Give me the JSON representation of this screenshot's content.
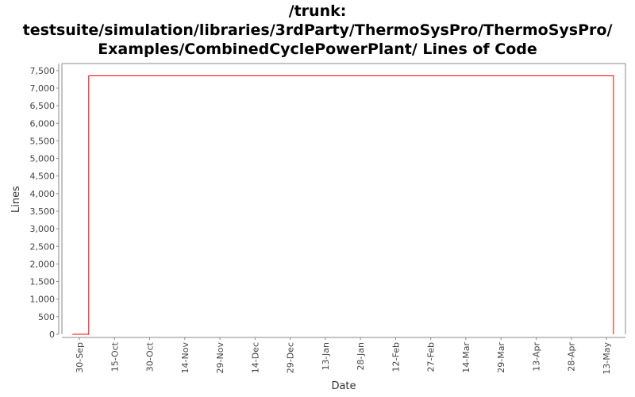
{
  "chart_data": {
    "type": "line",
    "title_lines": [
      "/trunk:",
      "testsuite/simulation/libraries/3rdParty/ThermoSysPro/ThermoSysPro/",
      "Examples/CombinedCyclePowerPlant/ Lines of Code"
    ],
    "xlabel": "Date",
    "ylabel": "Lines",
    "ylim": [
      0,
      7700
    ],
    "yticks": [
      0,
      500,
      1000,
      1500,
      2000,
      2500,
      3000,
      3500,
      4000,
      4500,
      5000,
      5500,
      6000,
      6500,
      7000,
      7500
    ],
    "ytick_labels": [
      "0",
      "500",
      "1,000",
      "1,500",
      "2,000",
      "2,500",
      "3,000",
      "3,500",
      "4,000",
      "4,500",
      "5,000",
      "5,500",
      "6,000",
      "6,500",
      "7,000",
      "7,500"
    ],
    "xtick_labels": [
      "30-Sep",
      "15-Oct",
      "30-Oct",
      "14-Nov",
      "29-Nov",
      "14-Dec",
      "29-Dec",
      "13-Jan",
      "28-Jan",
      "12-Feb",
      "27-Feb",
      "14-Mar",
      "29-Mar",
      "13-Apr",
      "28-Apr",
      "13-May"
    ],
    "grid": false,
    "series": [
      {
        "color": "#ff0000",
        "points": [
          {
            "x": "27-Sep",
            "y": 0
          },
          {
            "x": "4-Oct",
            "y": 0
          },
          {
            "x": "4-Oct",
            "y": 7350
          },
          {
            "x": "16-May",
            "y": 7350
          },
          {
            "x": "16-May",
            "y": 0
          }
        ]
      }
    ]
  }
}
